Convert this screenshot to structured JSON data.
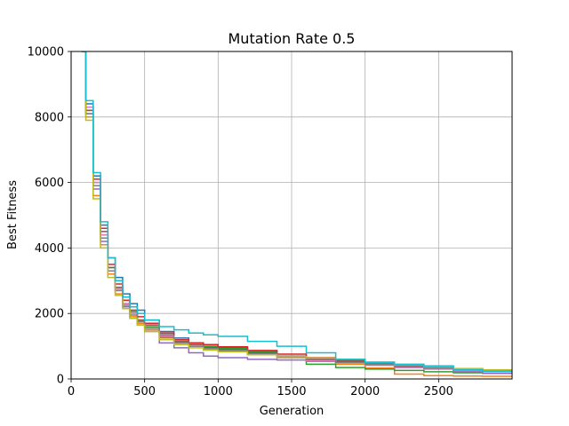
{
  "chart_data": {
    "type": "line",
    "title": "Mutation Rate 0.5",
    "xlabel": "Generation",
    "ylabel": "Best Fitness",
    "xlim": [
      0,
      3000
    ],
    "ylim": [
      0,
      10000
    ],
    "grid": true,
    "xticks": [
      0,
      500,
      1000,
      1500,
      2000,
      2500
    ],
    "yticks": [
      0,
      2000,
      4000,
      6000,
      8000,
      10000
    ],
    "x": [
      70,
      100,
      150,
      200,
      250,
      300,
      350,
      400,
      450,
      500,
      600,
      700,
      800,
      900,
      1000,
      1200,
      1400,
      1600,
      1800,
      2000,
      2200,
      2400,
      2600,
      2800,
      3000
    ],
    "series": [
      {
        "color": "#1f77b4",
        "values": [
          10000,
          8400,
          6200,
          4700,
          3700,
          3100,
          2600,
          2300,
          2100,
          1800,
          1450,
          1250,
          1100,
          1000,
          950,
          850,
          700,
          600,
          500,
          420,
          360,
          320,
          280,
          250,
          230
        ]
      },
      {
        "color": "#ff7f0e",
        "values": [
          10000,
          8000,
          5600,
          4100,
          3200,
          2600,
          2200,
          1900,
          1700,
          1500,
          1250,
          1100,
          1000,
          930,
          870,
          760,
          650,
          550,
          450,
          330,
          150,
          100,
          90,
          80,
          80
        ]
      },
      {
        "color": "#2ca02c",
        "values": [
          10000,
          8200,
          5900,
          4400,
          3400,
          2800,
          2400,
          2050,
          1800,
          1600,
          1350,
          1150,
          1050,
          980,
          930,
          830,
          700,
          450,
          350,
          300,
          260,
          220,
          190,
          170,
          160
        ]
      },
      {
        "color": "#d62728",
        "values": [
          10000,
          8300,
          6100,
          4600,
          3500,
          2900,
          2400,
          2100,
          1900,
          1700,
          1400,
          1200,
          1100,
          1050,
          980,
          870,
          760,
          650,
          550,
          470,
          400,
          340,
          280,
          230,
          200
        ]
      },
      {
        "color": "#9467bd",
        "values": [
          10000,
          8100,
          5800,
          4200,
          3300,
          2700,
          2200,
          1850,
          1650,
          1450,
          1100,
          950,
          800,
          700,
          650,
          600,
          580,
          540,
          500,
          450,
          350,
          300,
          220,
          170,
          150
        ]
      },
      {
        "color": "#8c564b",
        "values": [
          10000,
          8200,
          6000,
          4500,
          3400,
          2800,
          2300,
          2000,
          1800,
          1650,
          1350,
          1150,
          1050,
          960,
          900,
          800,
          700,
          620,
          560,
          500,
          430,
          380,
          320,
          270,
          240
        ]
      },
      {
        "color": "#e377c2",
        "values": [
          10000,
          8300,
          6000,
          4400,
          3300,
          2750,
          2300,
          2000,
          1750,
          1550,
          1300,
          1100,
          1000,
          920,
          860,
          760,
          650,
          560,
          490,
          420,
          360,
          310,
          260,
          220,
          200
        ]
      },
      {
        "color": "#7f7f7f",
        "values": [
          10000,
          8100,
          5900,
          4300,
          3300,
          2700,
          2250,
          1950,
          1750,
          1550,
          1280,
          1100,
          1000,
          930,
          870,
          770,
          680,
          590,
          510,
          440,
          380,
          330,
          280,
          240,
          220
        ]
      },
      {
        "color": "#bcbd22",
        "values": [
          10000,
          7900,
          5500,
          4000,
          3100,
          2550,
          2150,
          1850,
          1650,
          1450,
          1200,
          1050,
          950,
          880,
          830,
          740,
          680,
          640,
          600,
          520,
          430,
          380,
          320,
          280,
          260
        ]
      },
      {
        "color": "#17becf",
        "values": [
          10000,
          8500,
          6300,
          4800,
          3700,
          3000,
          2500,
          2200,
          2000,
          1800,
          1600,
          1500,
          1400,
          1350,
          1300,
          1150,
          1000,
          800,
          600,
          500,
          450,
          400,
          280,
          230,
          200
        ]
      }
    ]
  }
}
